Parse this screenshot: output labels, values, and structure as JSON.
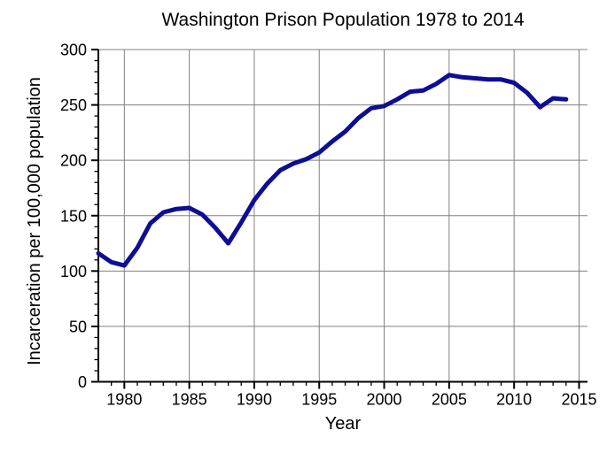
{
  "chart_data": {
    "type": "line",
    "title": "Washington Prison Population 1978 to 2014",
    "xlabel": "Year",
    "ylabel": "Incarceration per 100,000 population",
    "x": [
      1978,
      1979,
      1980,
      1981,
      1982,
      1983,
      1984,
      1985,
      1986,
      1987,
      1988,
      1989,
      1990,
      1991,
      1992,
      1993,
      1994,
      1995,
      1996,
      1997,
      1998,
      1999,
      2000,
      2001,
      2002,
      2003,
      2004,
      2005,
      2006,
      2007,
      2008,
      2009,
      2010,
      2011,
      2012,
      2013,
      2014
    ],
    "values": [
      116,
      108,
      105,
      121,
      143,
      153,
      156,
      157,
      151,
      139,
      125,
      144,
      164,
      179,
      191,
      197,
      201,
      207,
      217,
      226,
      238,
      247,
      249,
      255,
      262,
      263,
      269,
      277,
      275,
      274,
      273,
      273,
      270,
      261,
      248,
      256,
      255
    ],
    "xlim": [
      1978,
      2015.65
    ],
    "ylim": [
      0,
      300
    ],
    "x_major_ticks": [
      1980,
      1985,
      1990,
      1995,
      2000,
      2005,
      2010,
      2015
    ],
    "y_major_ticks": [
      0,
      50,
      100,
      150,
      200,
      250,
      300
    ],
    "x_minor_step": 1,
    "y_minor_step": 10,
    "grid": true,
    "legend": "none",
    "colors": {
      "line": "#0d0d96",
      "grid": "#808080",
      "axis": "#000000",
      "text": "#000000",
      "background": "#ffffff"
    }
  }
}
